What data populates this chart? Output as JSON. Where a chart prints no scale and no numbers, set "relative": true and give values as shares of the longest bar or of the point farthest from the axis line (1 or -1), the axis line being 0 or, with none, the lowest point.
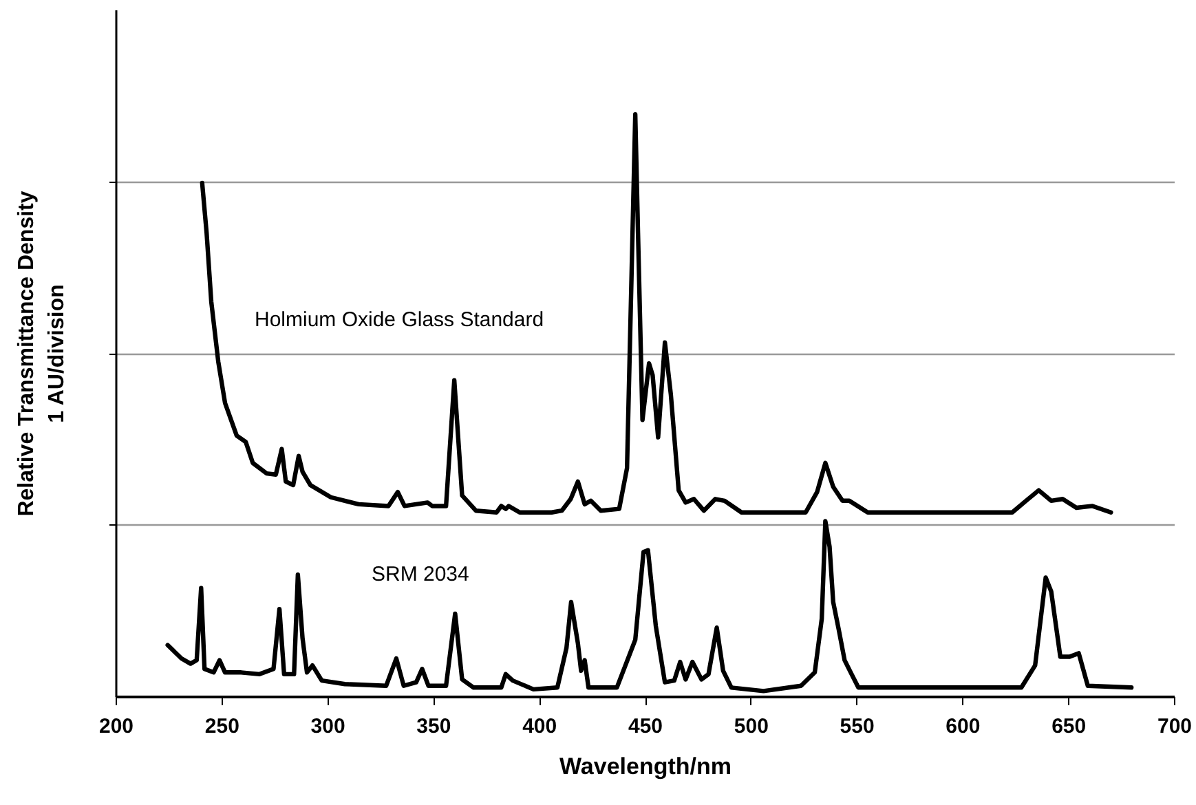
{
  "chart_data": {
    "type": "line",
    "xlabel": "Wavelength/nm",
    "ylabel": "Relative Transmittance Density\n1 AU/division",
    "xlim": [
      200,
      700
    ],
    "xticks": [
      200,
      250,
      300,
      350,
      400,
      450,
      500,
      550,
      600,
      650,
      700
    ],
    "relative": true,
    "grid": "y",
    "legend": false,
    "marker": "none",
    "line_style": "solid",
    "series": [
      {
        "name": "Holmium Oxide Glass Standard",
        "color": "#000000",
        "x": [
          240.9,
          243,
          245.2,
          248.5,
          251.7,
          257.2,
          261.5,
          264.8,
          271.3,
          275.7,
          278.5,
          280.4,
          283.9,
          286.5,
          288.3,
          292,
          301.7,
          314.8,
          328.9,
          333.3,
          336.5,
          347.4,
          349.6,
          356.1,
          360,
          363.7,
          370.2,
          380,
          382.2,
          384.3,
          385.7,
          390.9,
          406,
          410.8,
          415,
          418.4,
          421.6,
          424.5,
          429.2,
          437.9,
          441.6,
          443.7,
          445.5,
          446.8,
          448.9,
          452,
          453.7,
          456.3,
          459.5,
          462.3,
          466,
          469.3,
          473.2,
          477.9,
          483.3,
          487.7,
          495.7,
          526,
          531.4,
          535.3,
          539,
          543.4,
          546.6,
          555.3,
          623.6,
          630.1,
          636.1,
          642,
          647.4,
          653.9,
          661.5,
          670.2
        ],
        "values": [
          0.882,
          0.796,
          0.678,
          0.575,
          0.504,
          0.448,
          0.437,
          0.401,
          0.383,
          0.381,
          0.425,
          0.369,
          0.363,
          0.413,
          0.386,
          0.363,
          0.342,
          0.33,
          0.327,
          0.351,
          0.327,
          0.333,
          0.327,
          0.327,
          0.543,
          0.345,
          0.319,
          0.316,
          0.327,
          0.322,
          0.327,
          0.316,
          0.316,
          0.319,
          0.339,
          0.369,
          0.33,
          0.336,
          0.319,
          0.322,
          0.392,
          0.717,
          1,
          0.796,
          0.475,
          0.572,
          0.552,
          0.445,
          0.608,
          0.519,
          0.354,
          0.333,
          0.339,
          0.319,
          0.339,
          0.336,
          0.316,
          0.316,
          0.351,
          0.401,
          0.36,
          0.336,
          0.336,
          0.316,
          0.316,
          0.336,
          0.354,
          0.336,
          0.339,
          0.324,
          0.327,
          0.316
        ]
      },
      {
        "name": "SRM 2034",
        "color": "#000000",
        "x": [
          224.6,
          231.1,
          235.4,
          238.3,
          240.4,
          242,
          246.3,
          249.1,
          251.7,
          259.3,
          268,
          274.6,
          277.4,
          279.6,
          284.3,
          286.1,
          288.3,
          290.4,
          293,
          297.4,
          308.3,
          327.8,
          332.6,
          336.1,
          342,
          344.8,
          347.8,
          356.1,
          360.4,
          363.7,
          369.1,
          382.2,
          384.3,
          387.6,
          397.4,
          408.7,
          413,
          415.2,
          418.4,
          419.9,
          421.6,
          423.4,
          436.8,
          445.5,
          449.4,
          451.5,
          455.2,
          459.5,
          463.9,
          466.7,
          469.3,
          472.5,
          476.8,
          480.1,
          484,
          487,
          490.9,
          506.1,
          523.8,
          530.3,
          533.6,
          535.3,
          537.3,
          539,
          541.6,
          544.4,
          547.7,
          550.9,
          627.9,
          634.4,
          639.4,
          642,
          646.3,
          650.7,
          655,
          659.3,
          679.9
        ],
        "values": [
          0.088,
          0.065,
          0.056,
          0.062,
          0.186,
          0.047,
          0.041,
          0.062,
          0.041,
          0.041,
          0.038,
          0.047,
          0.15,
          0.038,
          0.038,
          0.209,
          0.1,
          0.041,
          0.053,
          0.027,
          0.021,
          0.018,
          0.065,
          0.018,
          0.024,
          0.047,
          0.018,
          0.018,
          0.142,
          0.029,
          0.015,
          0.015,
          0.038,
          0.027,
          0.012,
          0.015,
          0.083,
          0.162,
          0.091,
          0.044,
          0.062,
          0.015,
          0.015,
          0.097,
          0.248,
          0.251,
          0.121,
          0.024,
          0.027,
          0.059,
          0.029,
          0.059,
          0.029,
          0.038,
          0.118,
          0.044,
          0.015,
          0.009,
          0.018,
          0.041,
          0.133,
          0.301,
          0.257,
          0.162,
          0.115,
          0.062,
          0.038,
          0.015,
          0.015,
          0.053,
          0.204,
          0.18,
          0.068,
          0.068,
          0.074,
          0.018,
          0.015
        ]
      }
    ]
  }
}
